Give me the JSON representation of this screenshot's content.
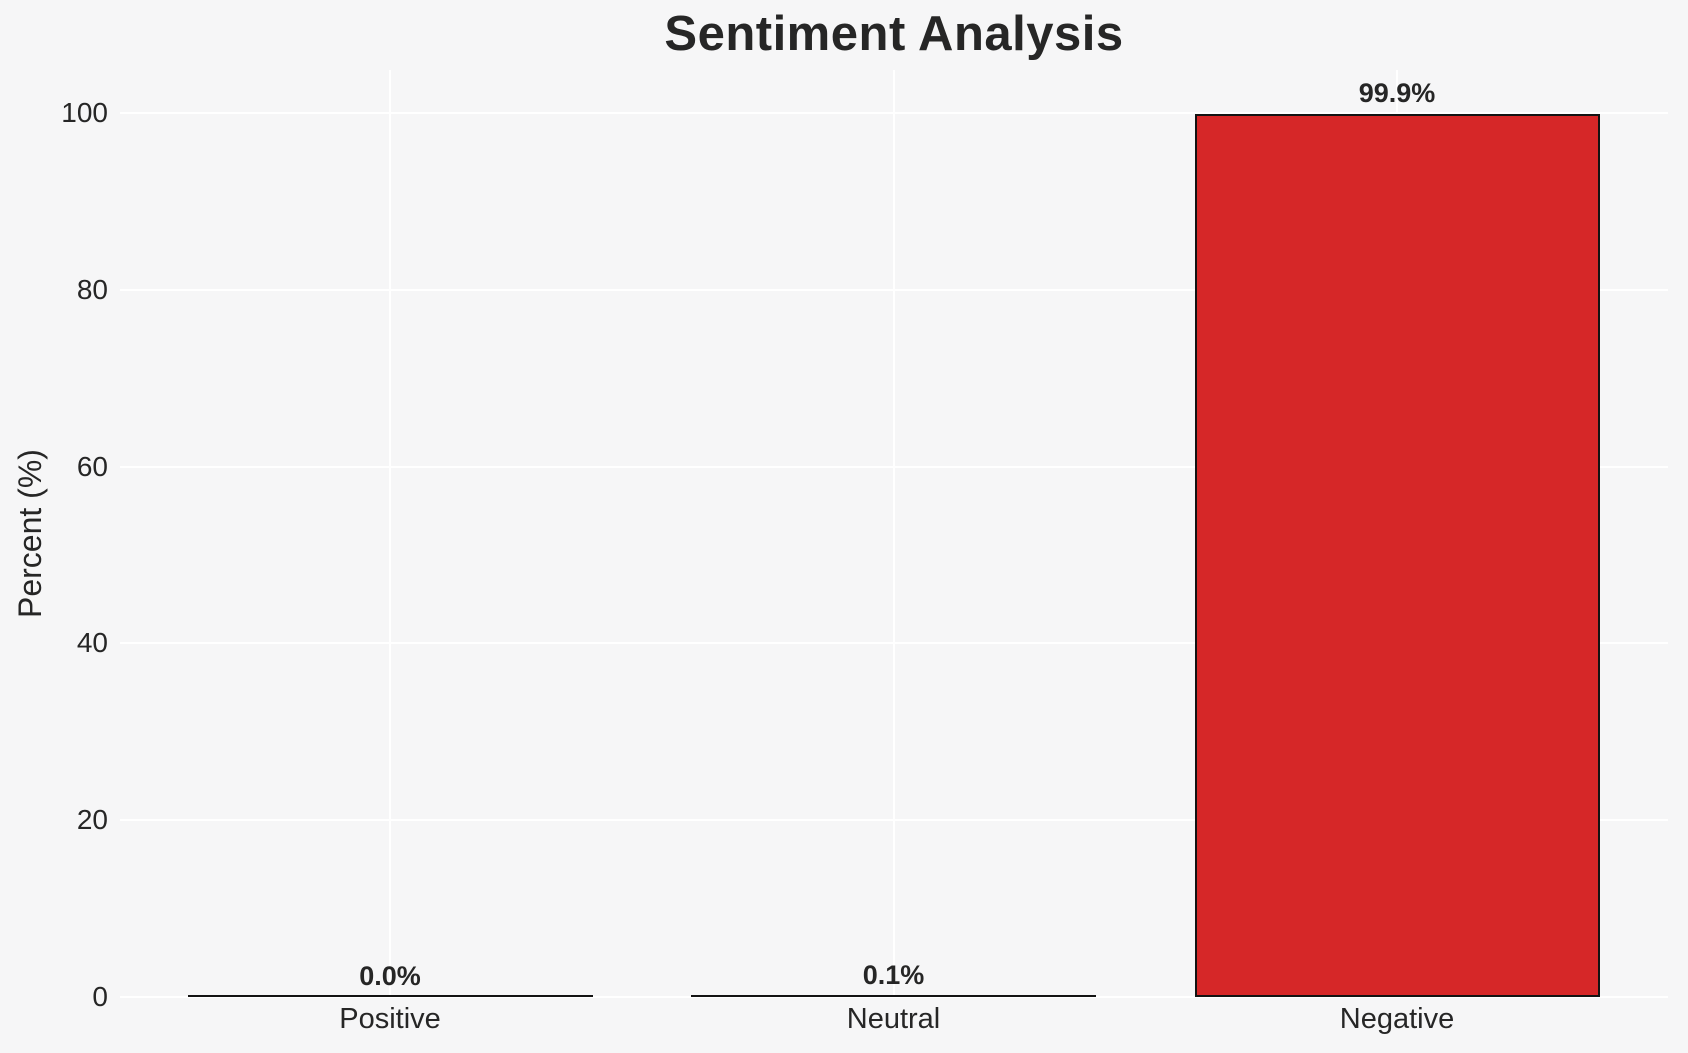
{
  "page": {
    "background_color": "#f6f6f7"
  },
  "chart_data": {
    "type": "bar",
    "title": "Sentiment Analysis",
    "xlabel": "",
    "ylabel": "Percent (%)",
    "categories": [
      "Positive",
      "Neutral",
      "Negative"
    ],
    "values": [
      0.0,
      0.1,
      99.9
    ],
    "value_labels": [
      "0.0%",
      "0.1%",
      "99.9%"
    ],
    "yticks": [
      "0",
      "20",
      "40",
      "60",
      "80",
      "100"
    ],
    "ytick_values": [
      0,
      20,
      40,
      60,
      80,
      100
    ],
    "ylim": [
      0,
      100
    ],
    "grid": true,
    "grid_color": "#ffffff",
    "legend": "none",
    "bar_color": "#d62728",
    "bar_edge_color": "#131313",
    "text_color": "#262626",
    "title_color": "#262626",
    "background_color": "#f6f6f7"
  }
}
